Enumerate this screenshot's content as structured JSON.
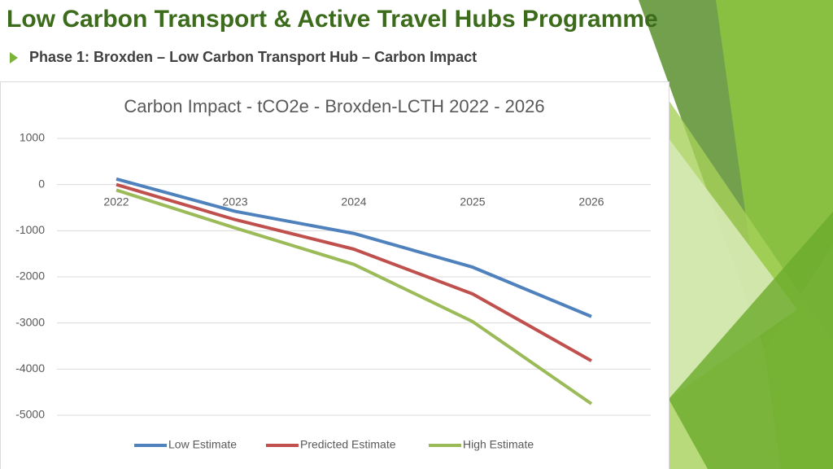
{
  "slide": {
    "title": "Low Carbon Transport & Active Travel Hubs Programme",
    "subtitle": "Phase 1: Broxden – Low Carbon Transport Hub – Carbon Impact"
  },
  "chart_data": {
    "type": "line",
    "title": "Carbon Impact - tCO2e - Broxden-LCTH 2022 - 2026",
    "categories": [
      "2022",
      "2023",
      "2024",
      "2025",
      "2026"
    ],
    "series": [
      {
        "name": "Low Estimate",
        "color": "#4f81bd",
        "values": [
          120,
          -580,
          -1060,
          -1790,
          -2860
        ]
      },
      {
        "name": "Predicted Estimate",
        "color": "#c0504d",
        "values": [
          0,
          -760,
          -1400,
          -2370,
          -3820
        ]
      },
      {
        "name": "High Estimate",
        "color": "#9bbb59",
        "values": [
          -120,
          -940,
          -1730,
          -2970,
          -4750
        ]
      }
    ],
    "ylim": [
      -5000,
      1000
    ],
    "yticks": [
      -5000,
      -4000,
      -3000,
      -2000,
      -1000,
      0,
      1000
    ],
    "grid": true,
    "legend": "bottom"
  }
}
